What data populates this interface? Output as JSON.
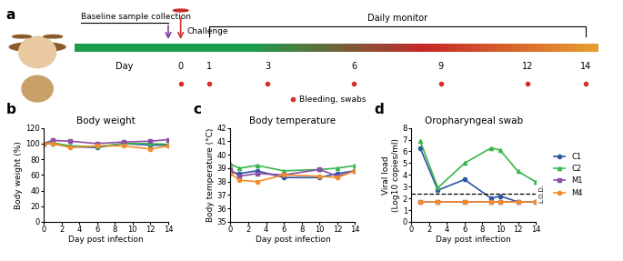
{
  "diagram": {
    "panel": "a",
    "baseline": "Baseline sample collection",
    "challenge": "Challenge",
    "monitor": "Daily monitor",
    "axis_label": "Day",
    "days": [
      0,
      1,
      3,
      6,
      9,
      12,
      14
    ],
    "bleeding_days": [
      0,
      1,
      3,
      6,
      9,
      12,
      14
    ],
    "sample_label": "Bleeding, swabs"
  },
  "chart_data": [
    {
      "panel": "b",
      "type": "line",
      "title": "Body weight",
      "x_label": "Day post infection",
      "y_label": "Body weight (%)",
      "x": [
        0,
        1,
        3,
        6,
        9,
        12,
        14
      ],
      "xlim": [
        0,
        14
      ],
      "xticks": [
        0,
        2,
        4,
        6,
        8,
        10,
        12,
        14
      ],
      "ylim": [
        0,
        120
      ],
      "yticks": [
        0,
        20,
        40,
        60,
        80,
        100,
        120
      ],
      "grid": false,
      "series": [
        {
          "name": "C1",
          "color": "#2b55a6",
          "marker": "circle",
          "values": [
            100,
            100,
            96,
            95,
            100,
            98,
            98
          ]
        },
        {
          "name": "C2",
          "color": "#3ab54a",
          "marker": "triangle",
          "values": [
            100,
            101,
            97,
            96,
            100,
            100,
            99
          ]
        },
        {
          "name": "M1",
          "color": "#8a4fa6",
          "marker": "square",
          "values": [
            100,
            104,
            103,
            100,
            102,
            103,
            105
          ]
        },
        {
          "name": "M4",
          "color": "#f28c28",
          "marker": "circle",
          "values": [
            100,
            100,
            95,
            97,
            97,
            93,
            97
          ]
        }
      ]
    },
    {
      "panel": "c",
      "type": "line",
      "title": "Body temperature",
      "x_label": "Day post infection",
      "y_label": "Body temperature (°C)",
      "x": [
        0,
        1,
        3,
        6,
        10,
        12,
        14
      ],
      "xlim": [
        0,
        14
      ],
      "xticks": [
        0,
        2,
        4,
        6,
        8,
        10,
        12,
        14
      ],
      "ylim": [
        35,
        42
      ],
      "yticks": [
        35,
        36,
        37,
        38,
        39,
        40,
        41,
        42
      ],
      "grid": false,
      "series": [
        {
          "name": "C1",
          "color": "#2b55a6",
          "marker": "circle",
          "values": [
            38.7,
            38.6,
            38.8,
            38.3,
            38.3,
            38.6,
            38.8
          ]
        },
        {
          "name": "C2",
          "color": "#3ab54a",
          "marker": "triangle",
          "values": [
            39.3,
            39.0,
            39.2,
            38.8,
            38.9,
            39.0,
            39.2
          ]
        },
        {
          "name": "M1",
          "color": "#8a4fa6",
          "marker": "square",
          "values": [
            38.9,
            38.4,
            38.6,
            38.5,
            38.9,
            38.4,
            38.8
          ]
        },
        {
          "name": "M4",
          "color": "#f28c28",
          "marker": "circle",
          "values": [
            38.6,
            38.1,
            38.0,
            38.5,
            38.4,
            38.3,
            38.8
          ]
        }
      ]
    },
    {
      "panel": "d",
      "type": "line",
      "title": "Oropharyngeal swab",
      "x_label": "Day post infection",
      "y_label": "Viral load\n(Log10 copies/ml)",
      "x": [
        1,
        3,
        6,
        9,
        10,
        12,
        14
      ],
      "xlim": [
        0,
        14
      ],
      "xticks": [
        0,
        2,
        4,
        6,
        8,
        10,
        12,
        14
      ],
      "ylim": [
        0,
        8
      ],
      "yticks": [
        0,
        1,
        2,
        3,
        4,
        5,
        6,
        7,
        8
      ],
      "grid": false,
      "legend": "right",
      "limit_of_detection": {
        "value": 2.4,
        "label": "L.O.D."
      },
      "series": [
        {
          "name": "C1",
          "color": "#2b55a6",
          "marker": "circle",
          "values": [
            6.3,
            2.7,
            3.6,
            2.0,
            2.2,
            1.7,
            1.7
          ]
        },
        {
          "name": "C2",
          "color": "#3ab54a",
          "marker": "triangle",
          "values": [
            6.9,
            2.9,
            5.0,
            6.3,
            6.1,
            4.3,
            3.4
          ]
        },
        {
          "name": "M1",
          "color": "#8a4fa6",
          "marker": "square",
          "values": [
            1.7,
            1.7,
            1.7,
            1.7,
            1.7,
            1.7,
            1.7
          ]
        },
        {
          "name": "M4",
          "color": "#f28c28",
          "marker": "circle",
          "values": [
            1.7,
            1.7,
            1.7,
            1.7,
            1.7,
            1.7,
            1.7
          ]
        }
      ]
    }
  ]
}
